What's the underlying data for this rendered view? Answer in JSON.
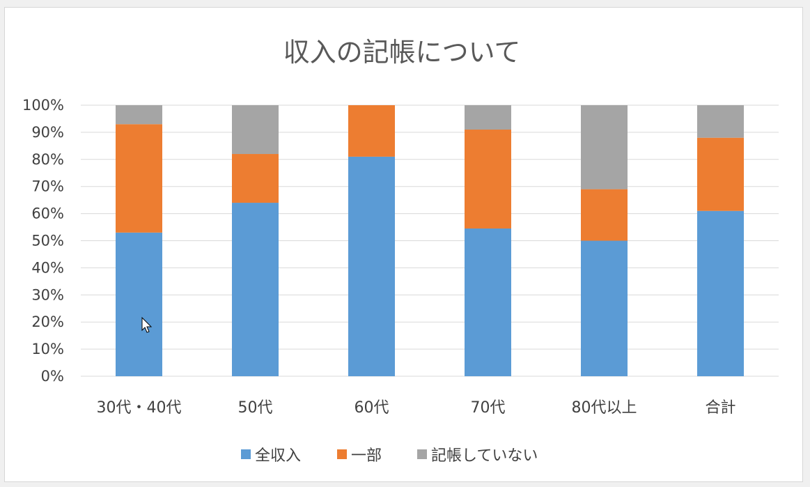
{
  "chart_data": {
    "type": "bar",
    "stacked": "percent",
    "title": "収入の記帳について",
    "categories": [
      "30代・40代",
      "50代",
      "60代",
      "70代",
      "80代以上",
      "合計"
    ],
    "series": [
      {
        "name": "全収入",
        "values": [
          53,
          64,
          81,
          54.5,
          50,
          61
        ],
        "color": "#5b9bd5"
      },
      {
        "name": "一部",
        "values": [
          40,
          18,
          19,
          36.5,
          19,
          27
        ],
        "color": "#ed7d31"
      },
      {
        "name": "記帳していない",
        "values": [
          7,
          18,
          0,
          9,
          31,
          12
        ],
        "color": "#a5a5a5"
      }
    ],
    "ylim": [
      0,
      100
    ],
    "yticks": [
      "0%",
      "10%",
      "20%",
      "30%",
      "40%",
      "50%",
      "60%",
      "70%",
      "80%",
      "90%",
      "100%"
    ],
    "xlabel": "",
    "ylabel": "",
    "grid": true,
    "legend_position": "bottom"
  },
  "colors": {
    "grid": "#d9d9d9",
    "axis": "#d9d9d9"
  }
}
